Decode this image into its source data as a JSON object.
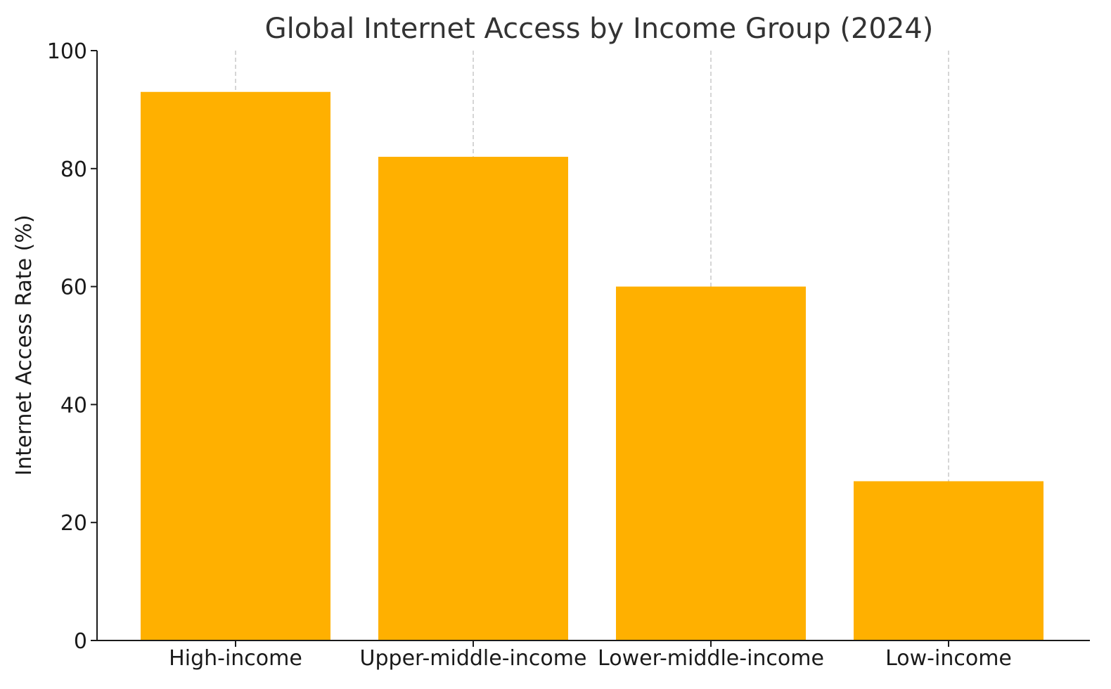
{
  "chart_data": {
    "type": "bar",
    "title": "Global Internet Access by Income Group (2024)",
    "xlabel": "",
    "ylabel": "Internet Access Rate (%)",
    "categories": [
      "High-income",
      "Upper-middle-income",
      "Lower-middle-income",
      "Low-income"
    ],
    "values": [
      93,
      82,
      60,
      27
    ],
    "ylim": [
      0,
      100
    ],
    "yticks": [
      0,
      20,
      40,
      60,
      80,
      100
    ],
    "grid": "vertical dashed at categories",
    "legend": "none",
    "bar_color": "#FFB000"
  }
}
